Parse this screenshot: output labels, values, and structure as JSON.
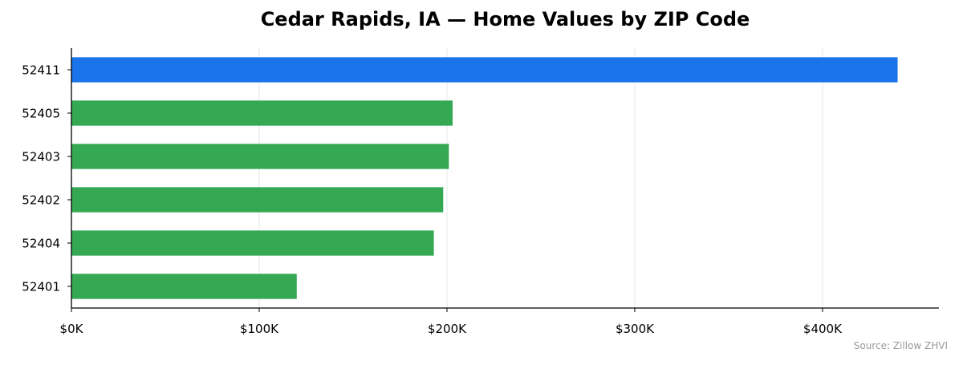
{
  "chart_data": {
    "type": "bar",
    "orientation": "horizontal",
    "title": "Cedar Rapids, IA — Home Values by ZIP Code",
    "categories": [
      "52411",
      "52405",
      "52403",
      "52402",
      "52404",
      "52401"
    ],
    "values": [
      440000,
      203000,
      201000,
      198000,
      193000,
      120000
    ],
    "highlight_index": 0,
    "colors": {
      "highlight": "#1a73e8",
      "default": "#34a853",
      "grid": "#e6e6e6",
      "axis": "#000000"
    },
    "xlim": [
      0,
      462000
    ],
    "xticks": [
      0,
      100000,
      200000,
      300000,
      400000
    ],
    "xtick_labels": [
      "$0K",
      "$100K",
      "$200K",
      "$300K",
      "$400K"
    ],
    "grid": "x-only",
    "source": "Source: Zillow ZHVI"
  }
}
